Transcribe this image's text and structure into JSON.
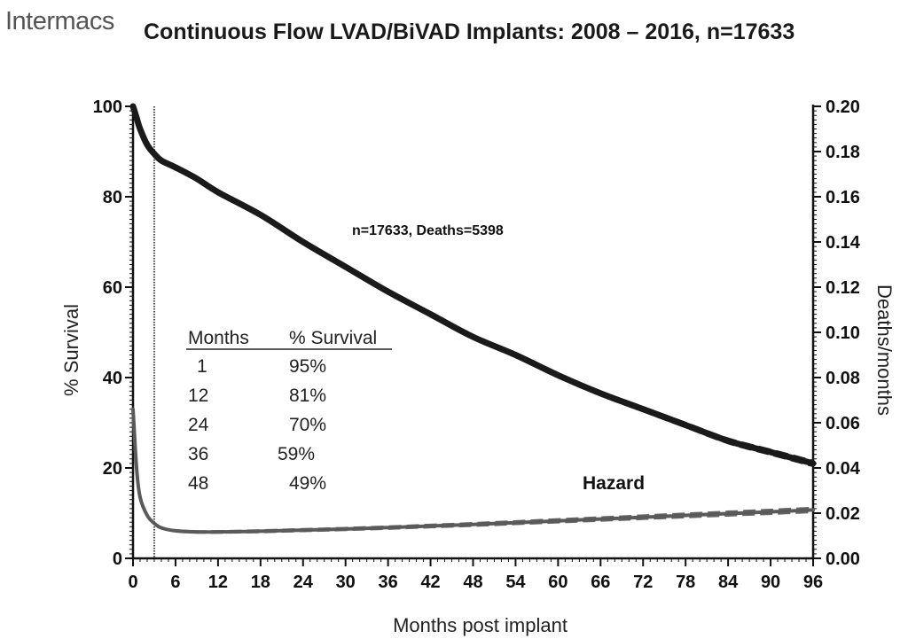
{
  "logo": "Intermacs",
  "chart_data": {
    "type": "line",
    "title": "Continuous Flow LVAD/BiVAD Implants:  2008 – 2016, n=17633",
    "xlabel": "Months post implant",
    "ylabel_left": "% Survival",
    "ylabel_right": "Deaths/months",
    "xlim": [
      0,
      96
    ],
    "ylim_left": [
      0,
      100
    ],
    "ylim_right": [
      0,
      0.2
    ],
    "x_ticks": [
      "0",
      "6",
      "12",
      "18",
      "24",
      "30",
      "36",
      "42",
      "48",
      "54",
      "60",
      "66",
      "72",
      "78",
      "84",
      "90",
      "96"
    ],
    "y_ticks_left": [
      "0",
      "20",
      "40",
      "60",
      "80",
      "100"
    ],
    "y_ticks_right": [
      "0.00",
      "0.02",
      "0.04",
      "0.06",
      "0.08",
      "0.10",
      "0.12",
      "0.14",
      "0.16",
      "0.18",
      "0.20"
    ],
    "annotation": "n=17633, Deaths=5398",
    "hazard_label": "Hazard",
    "phase_marker_x": 3,
    "series": [
      {
        "name": "% Survival",
        "axis": "left",
        "x": [
          0,
          0.5,
          1,
          2,
          3,
          4,
          6,
          9,
          12,
          18,
          24,
          30,
          36,
          42,
          48,
          54,
          60,
          66,
          72,
          78,
          84,
          90,
          96
        ],
        "values": [
          100,
          97.5,
          95,
          91.5,
          89.5,
          88,
          86.5,
          84,
          81,
          76,
          70,
          64.5,
          59,
          54,
          49,
          45,
          40.5,
          36.5,
          33,
          29.5,
          26,
          23.5,
          21
        ]
      },
      {
        "name": "Hazard",
        "axis": "right",
        "x": [
          0,
          0.5,
          1,
          2,
          3,
          4,
          6,
          9,
          12,
          18,
          24,
          30,
          36,
          42,
          48,
          54,
          60,
          66,
          72,
          78,
          84,
          90,
          96
        ],
        "values": [
          0.066,
          0.04,
          0.027,
          0.019,
          0.0155,
          0.0135,
          0.0122,
          0.0117,
          0.0117,
          0.012,
          0.0125,
          0.013,
          0.0136,
          0.0143,
          0.015,
          0.0158,
          0.0166,
          0.0174,
          0.0182,
          0.019,
          0.0198,
          0.0206,
          0.0214
        ]
      }
    ],
    "table": {
      "headers": [
        "Months",
        "% Survival"
      ],
      "rows": [
        [
          "1",
          "95%"
        ],
        [
          "12",
          "81%"
        ],
        [
          "24",
          "70%"
        ],
        [
          "36",
          "59%"
        ],
        [
          "48",
          "49%"
        ]
      ]
    }
  }
}
